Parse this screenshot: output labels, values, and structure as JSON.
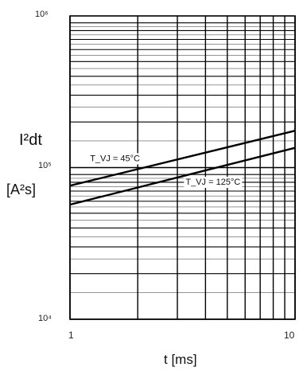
{
  "chart_data": {
    "type": "line",
    "title": "",
    "ylabel_line1": "I²dt",
    "ylabel_line2": "[A²s]",
    "xlabel": "t  [ms]",
    "x_scale": "log",
    "y_scale": "log",
    "xlim": [
      1,
      10
    ],
    "ylim": [
      10000,
      1000000
    ],
    "grid": true,
    "y_tick_labels": [
      "10⁶",
      "10⁵",
      "10⁴"
    ],
    "x_tick_labels": [
      "1",
      "10"
    ],
    "series": [
      {
        "name": "T_VJ = 45°C",
        "x": [
          1,
          10
        ],
        "y": [
          76000,
          175000
        ]
      },
      {
        "name": "T_VJ = 125°C",
        "x": [
          1,
          10
        ],
        "y": [
          57000,
          135000
        ]
      }
    ],
    "annotations": [
      {
        "text": "T_VJ = 45°C",
        "series": 0
      },
      {
        "text": "T_VJ = 125°C",
        "series": 1
      }
    ]
  }
}
